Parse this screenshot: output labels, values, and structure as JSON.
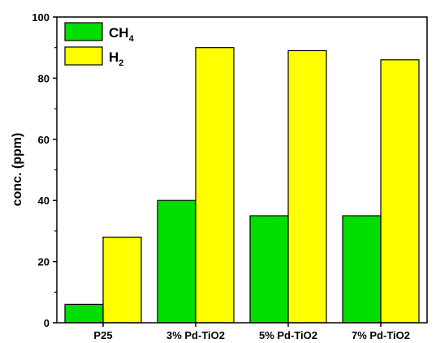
{
  "chart_data": {
    "type": "bar",
    "categories": [
      "P25",
      "3% Pd-TiO2",
      "5% Pd-TiO2",
      "7% Pd-TiO2"
    ],
    "series": [
      {
        "name": "CH4",
        "label_main": "CH",
        "label_sub": "4",
        "color": "#00dd00",
        "values": [
          6,
          40,
          35,
          35
        ]
      },
      {
        "name": "H2",
        "label_main": "H",
        "label_sub": "2",
        "color": "#ffff00",
        "values": [
          28,
          90,
          89,
          86
        ]
      }
    ],
    "ylabel": "conc. (ppm)",
    "xlabel": "",
    "ylim": [
      0,
      100
    ],
    "yticks": [
      0,
      20,
      40,
      60,
      80,
      100
    ],
    "grid": false,
    "legend_position": "top-left",
    "bar_edge_color": "#000000"
  }
}
